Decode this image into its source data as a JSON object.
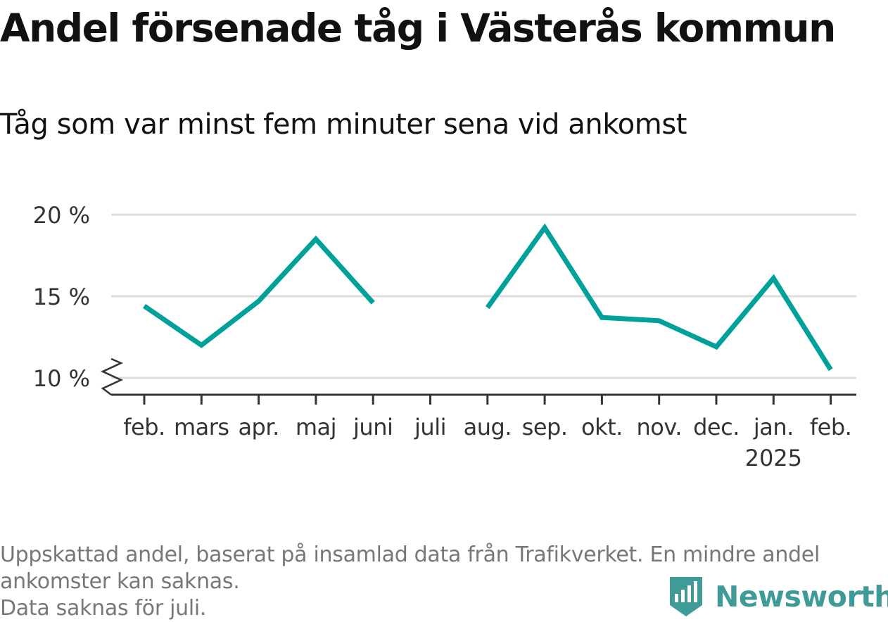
{
  "title": "Andel försenade tåg i Västerås kommun",
  "subtitle": "Tåg som var minst fem minuter sena vid ankomst",
  "chart_data": {
    "type": "line",
    "categories": [
      "feb.",
      "mars",
      "apr.",
      "maj",
      "juni",
      "juli",
      "aug.",
      "sep.",
      "okt.",
      "nov.",
      "dec.",
      "jan.",
      "feb."
    ],
    "year_label": "2025",
    "year_label_under": "jan.",
    "series": [
      {
        "values": [
          14.4,
          12.0,
          14.7,
          18.5,
          14.6,
          null,
          14.3,
          19.2,
          13.7,
          13.5,
          11.9,
          16.1,
          10.5
        ]
      }
    ],
    "y_ticks": [
      10,
      15,
      20
    ],
    "y_tick_labels": [
      "10 %",
      "15 %",
      "20 %"
    ],
    "ylim": [
      10,
      20
    ],
    "axis_break": true,
    "grid": true,
    "line_color": "#00A19A"
  },
  "footnote": {
    "line1": "Uppskattad andel, baserat på insamlad data från Trafikverket. En mindre andel",
    "line2": "ankomster kan saknas.",
    "line3": "Data saknas för juli."
  },
  "brand": {
    "name": "Newsworthy",
    "color": "#3E9B98",
    "icon": "newsworthy-logo-icon"
  }
}
